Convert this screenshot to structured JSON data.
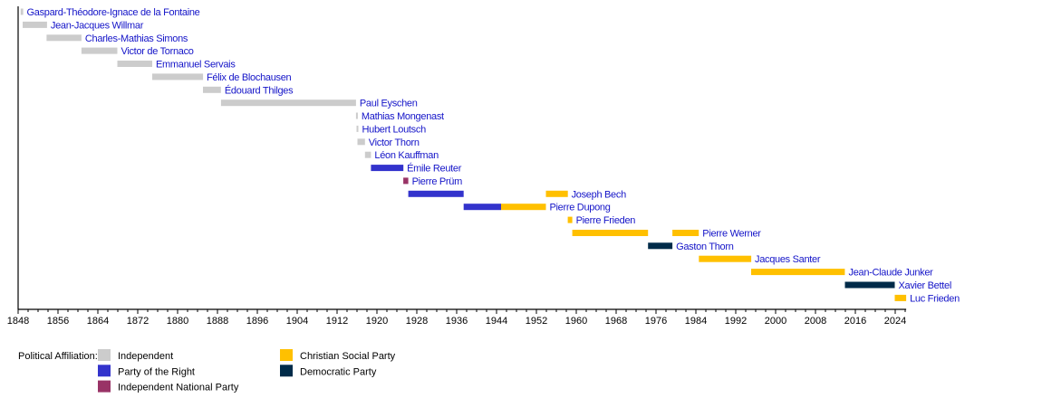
{
  "chart_data": {
    "type": "timeline",
    "xlim": [
      1848,
      2026.2
    ],
    "x_major_tick_step": 8,
    "x_minor_tick_step": 2,
    "tick_labels": [
      "1848",
      "1856",
      "1864",
      "1872",
      "1880",
      "1888",
      "1896",
      "1904",
      "1912",
      "1920",
      "1928",
      "1936",
      "1944",
      "1952",
      "1960",
      "1968",
      "1976",
      "1984",
      "1992",
      "2000",
      "2008",
      "2016",
      "2024"
    ],
    "grid": false,
    "colors": {
      "Independent": "#cccccc",
      "Party of the Right": "#3333cc",
      "Independent National Party": "#993366",
      "Christian Social Party": "#ffc000",
      "Democratic Party": "#002b49"
    },
    "label_color": "#1414c8",
    "rows": [
      {
        "name": "Gaspard-Théodore-Ignace de la Fontaine",
        "terms": [
          {
            "start": 1848.5,
            "end": 1849.0,
            "party": "Independent"
          }
        ]
      },
      {
        "name": "Jean-Jacques Willmar",
        "terms": [
          {
            "start": 1848.9,
            "end": 1853.8,
            "party": "Independent"
          }
        ]
      },
      {
        "name": "Charles-Mathias Simons",
        "terms": [
          {
            "start": 1853.7,
            "end": 1860.7,
            "party": "Independent"
          }
        ]
      },
      {
        "name": "Victor de Tornaco",
        "terms": [
          {
            "start": 1860.7,
            "end": 1867.9,
            "party": "Independent"
          }
        ]
      },
      {
        "name": "Emmanuel Servais",
        "terms": [
          {
            "start": 1867.9,
            "end": 1874.9,
            "party": "Independent"
          }
        ]
      },
      {
        "name": "Félix de Blochausen",
        "terms": [
          {
            "start": 1874.9,
            "end": 1885.1,
            "party": "Independent"
          }
        ]
      },
      {
        "name": "Édouard Thilges",
        "terms": [
          {
            "start": 1885.1,
            "end": 1888.7,
            "party": "Independent"
          }
        ]
      },
      {
        "name": "Paul Eyschen",
        "terms": [
          {
            "start": 1888.7,
            "end": 1915.8,
            "party": "Independent"
          }
        ]
      },
      {
        "name": "Mathias Mongenast",
        "terms": [
          {
            "start": 1915.8,
            "end": 1915.9,
            "party": "Independent"
          }
        ]
      },
      {
        "name": "Hubert Loutsch",
        "terms": [
          {
            "start": 1915.9,
            "end": 1916.1,
            "party": "Independent"
          }
        ]
      },
      {
        "name": "Victor Thorn",
        "terms": [
          {
            "start": 1916.1,
            "end": 1917.6,
            "party": "Independent"
          }
        ]
      },
      {
        "name": "Léon Kauffman",
        "terms": [
          {
            "start": 1917.6,
            "end": 1918.8,
            "party": "Independent"
          }
        ]
      },
      {
        "name": "Émile Reuter",
        "terms": [
          {
            "start": 1918.8,
            "end": 1925.3,
            "party": "Party of the Right"
          }
        ]
      },
      {
        "name": "Pierre Prüm",
        "terms": [
          {
            "start": 1925.3,
            "end": 1926.3,
            "party": "Independent National Party"
          }
        ]
      },
      {
        "name": "Joseph Bech",
        "terms": [
          {
            "start": 1926.3,
            "end": 1937.4,
            "party": "Party of the Right"
          },
          {
            "start": 1953.9,
            "end": 1958.3,
            "party": "Christian Social Party"
          }
        ]
      },
      {
        "name": "Pierre Dupong",
        "terms": [
          {
            "start": 1937.4,
            "end": 1944.9,
            "party": "Party of the Right"
          },
          {
            "start": 1944.9,
            "end": 1953.9,
            "party": "Christian Social Party"
          }
        ]
      },
      {
        "name": "Pierre Frieden",
        "terms": [
          {
            "start": 1958.3,
            "end": 1959.2,
            "party": "Christian Social Party"
          }
        ]
      },
      {
        "name": "Pierre Werner",
        "terms": [
          {
            "start": 1959.2,
            "end": 1974.4,
            "party": "Christian Social Party"
          },
          {
            "start": 1979.3,
            "end": 1984.6,
            "party": "Christian Social Party"
          }
        ]
      },
      {
        "name": "Gaston Thorn",
        "terms": [
          {
            "start": 1974.4,
            "end": 1979.3,
            "party": "Democratic Party"
          }
        ]
      },
      {
        "name": "Jacques Santer",
        "terms": [
          {
            "start": 1984.6,
            "end": 1995.1,
            "party": "Christian Social Party"
          }
        ]
      },
      {
        "name": "Jean-Claude Junker",
        "terms": [
          {
            "start": 1995.1,
            "end": 2013.9,
            "party": "Christian Social Party"
          }
        ]
      },
      {
        "name": "Xavier Bettel",
        "terms": [
          {
            "start": 2013.9,
            "end": 2023.9,
            "party": "Democratic Party"
          }
        ]
      },
      {
        "name": "Luc Frieden",
        "terms": [
          {
            "start": 2023.9,
            "end": 2026.2,
            "party": "Christian Social Party"
          }
        ]
      }
    ],
    "legend": {
      "title": "Political Affiliation:",
      "placement": "bottom-left",
      "columns": [
        [
          "Independent",
          "Party of the Right",
          "Independent National Party"
        ],
        [
          "Christian Social Party",
          "Democratic Party"
        ]
      ]
    }
  }
}
